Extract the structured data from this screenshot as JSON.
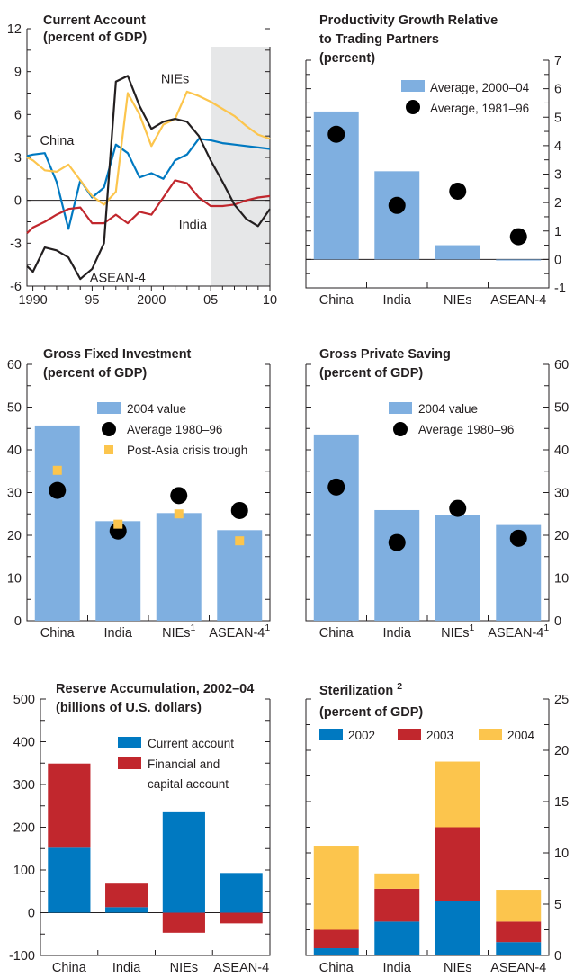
{
  "chart_data": [
    {
      "type": "line",
      "title": "Current Account",
      "subtitle": "(percent of GDP)",
      "x_tick_labels": [
        "1990",
        "95",
        "2000",
        "05",
        "10"
      ],
      "y_tick_labels": [
        "12",
        "9",
        "6",
        "3",
        "0",
        "-3",
        "-6"
      ],
      "ylim": [
        -6,
        12
      ],
      "xlim": [
        1989.5,
        2010
      ],
      "shaded_region": [
        2005,
        2010
      ],
      "series": [
        {
          "name": "China",
          "color": "#0079c1",
          "label_pos": [
            1990.6,
            4.2
          ],
          "x": [
            1989.5,
            1990,
            1991,
            1992,
            1993,
            1994,
            1995,
            1996,
            1997,
            1998,
            1999,
            2000,
            2001,
            2002,
            2003,
            2004,
            2005,
            2006,
            2007,
            2008,
            2009,
            2010
          ],
          "y": [
            3.1,
            3.2,
            3.3,
            1.3,
            -2.0,
            1.4,
            0.2,
            0.9,
            3.9,
            3.3,
            1.6,
            1.9,
            1.5,
            2.8,
            3.2,
            4.3,
            4.2,
            4.0,
            3.9,
            3.8,
            3.7,
            3.6
          ]
        },
        {
          "name": "NIEs",
          "color": "#fcc54d",
          "label_pos": [
            2000.8,
            8.5
          ],
          "x": [
            1989.5,
            1990,
            1991,
            1992,
            1993,
            1994,
            1995,
            1996,
            1997,
            1998,
            1999,
            2000,
            2001,
            2002,
            2003,
            2004,
            2005,
            2006,
            2007,
            2008,
            2009,
            2010
          ],
          "y": [
            3.0,
            2.8,
            2.1,
            2.0,
            2.5,
            1.4,
            0.3,
            -0.3,
            0.6,
            7.5,
            6.0,
            3.8,
            5.3,
            5.7,
            7.6,
            7.3,
            6.9,
            6.4,
            5.9,
            5.2,
            4.6,
            4.3
          ]
        },
        {
          "name": "India",
          "color": "#c1272d",
          "label_pos": [
            2002.3,
            -1.7
          ],
          "x": [
            1989.5,
            1990,
            1991,
            1992,
            1993,
            1994,
            1995,
            1996,
            1997,
            1998,
            1999,
            2000,
            2001,
            2002,
            2003,
            2004,
            2005,
            2006,
            2007,
            2008,
            2009,
            2010
          ],
          "y": [
            -2.3,
            -1.9,
            -1.5,
            -1.0,
            -0.6,
            -0.5,
            -1.6,
            -1.6,
            -1.0,
            -1.6,
            -0.8,
            -1.0,
            0.2,
            1.4,
            1.2,
            0.2,
            -0.4,
            -0.4,
            -0.3,
            0.0,
            0.2,
            0.3
          ]
        },
        {
          "name": "ASEAN-4",
          "color": "#231f20",
          "label_pos": [
            1994.8,
            -5.4
          ],
          "x": [
            1989.5,
            1990,
            1991,
            1992,
            1993,
            1994,
            1995,
            1996,
            1997,
            1998,
            1999,
            2000,
            2001,
            2002,
            2003,
            2004,
            2005,
            2006,
            2007,
            2008,
            2009,
            2010
          ],
          "y": [
            -4.6,
            -5.0,
            -3.3,
            -3.5,
            -4.0,
            -5.5,
            -4.8,
            -3.0,
            8.3,
            8.7,
            6.6,
            5.0,
            5.5,
            5.7,
            5.5,
            4.5,
            2.8,
            1.3,
            -0.3,
            -1.3,
            -1.8,
            -0.6
          ]
        }
      ]
    },
    {
      "type": "bar",
      "title": "Productivity Growth Relative",
      "title_line2": "to Trading Partners",
      "subtitle": "(percent)",
      "categories": [
        "China",
        "India",
        "NIEs",
        "ASEAN-4"
      ],
      "ylim": [
        -1,
        7
      ],
      "y_tick_labels": [
        "7",
        "6",
        "5",
        "4",
        "3",
        "2",
        "1",
        "0",
        "-1"
      ],
      "series": [
        {
          "name": "Average, 2000–04",
          "color": "#7fafe0",
          "kind": "bar",
          "values": [
            5.2,
            3.1,
            0.5,
            0.0
          ]
        },
        {
          "name": "Average, 1981–96",
          "color": "#000000",
          "kind": "dot",
          "values": [
            4.4,
            1.9,
            2.4,
            0.8
          ]
        }
      ]
    },
    {
      "type": "bar",
      "title": "Gross Fixed Investment",
      "subtitle": "(percent of GDP)",
      "categories": [
        "China",
        "India",
        "NIEs",
        "ASEAN-4"
      ],
      "category_sup": [
        "",
        "",
        "1",
        "1"
      ],
      "ylim": [
        0,
        60
      ],
      "y_tick_labels": [
        "60",
        "50",
        "40",
        "30",
        "20",
        "10",
        "0"
      ],
      "series": [
        {
          "name": "2004 value",
          "color": "#7fafe0",
          "kind": "bar",
          "values": [
            45.7,
            23.3,
            25.2,
            21.2
          ]
        },
        {
          "name": "Average 1980–96",
          "color": "#000000",
          "kind": "dot",
          "values": [
            30.5,
            21.0,
            29.3,
            25.8
          ]
        },
        {
          "name": "Post-Asia crisis trough",
          "color": "#fcc54d",
          "kind": "square",
          "values": [
            35.2,
            22.6,
            25.0,
            18.7
          ]
        }
      ]
    },
    {
      "type": "bar",
      "title": "Gross Private Saving",
      "subtitle": "(percent of GDP)",
      "categories": [
        "China",
        "India",
        "NIEs",
        "ASEAN-4"
      ],
      "category_sup": [
        "",
        "",
        "1",
        "1"
      ],
      "ylim": [
        0,
        60
      ],
      "y_tick_labels": [
        "60",
        "50",
        "40",
        "30",
        "20",
        "10",
        "0"
      ],
      "series": [
        {
          "name": "2004 value",
          "color": "#7fafe0",
          "kind": "bar",
          "values": [
            43.6,
            25.9,
            24.8,
            22.4
          ]
        },
        {
          "name": "Average 1980–96",
          "color": "#000000",
          "kind": "dot",
          "values": [
            31.3,
            18.3,
            26.3,
            19.3
          ]
        }
      ]
    },
    {
      "type": "bar",
      "title": "Reserve Accumulation, 2002–04",
      "subtitle": "(billions of U.S. dollars)",
      "categories": [
        "China",
        "India",
        "NIEs",
        "ASEAN-4"
      ],
      "ylim": [
        -100,
        500
      ],
      "y_tick_labels": [
        "500",
        "400",
        "300",
        "200",
        "100",
        "0",
        "-100"
      ],
      "series": [
        {
          "name": "Current account",
          "color": "#0079c1",
          "kind": "stack",
          "values": [
            152,
            13,
            235,
            93
          ]
        },
        {
          "name": "Financial and capital account",
          "legend_lines": [
            "Financial and",
            "capital account"
          ],
          "color": "#c1272d",
          "kind": "stack",
          "values": [
            197,
            55,
            -47,
            -25
          ]
        }
      ]
    },
    {
      "type": "bar",
      "title": "Sterilization",
      "title_sup": "2",
      "subtitle": "(percent of GDP)",
      "categories": [
        "China",
        "India",
        "NIEs",
        "ASEAN-4"
      ],
      "ylim": [
        0,
        25
      ],
      "y_tick_labels": [
        "25",
        "20",
        "15",
        "10",
        "5",
        "0"
      ],
      "series": [
        {
          "name": "2002",
          "color": "#0079c1",
          "kind": "stack",
          "values": [
            0.7,
            3.3,
            5.3,
            1.3
          ]
        },
        {
          "name": "2003",
          "color": "#c1272d",
          "kind": "stack",
          "values": [
            1.8,
            3.2,
            7.2,
            2.0
          ]
        },
        {
          "name": "2004",
          "color": "#fcc54d",
          "kind": "stack",
          "values": [
            8.2,
            1.5,
            6.4,
            3.1
          ]
        }
      ]
    }
  ]
}
